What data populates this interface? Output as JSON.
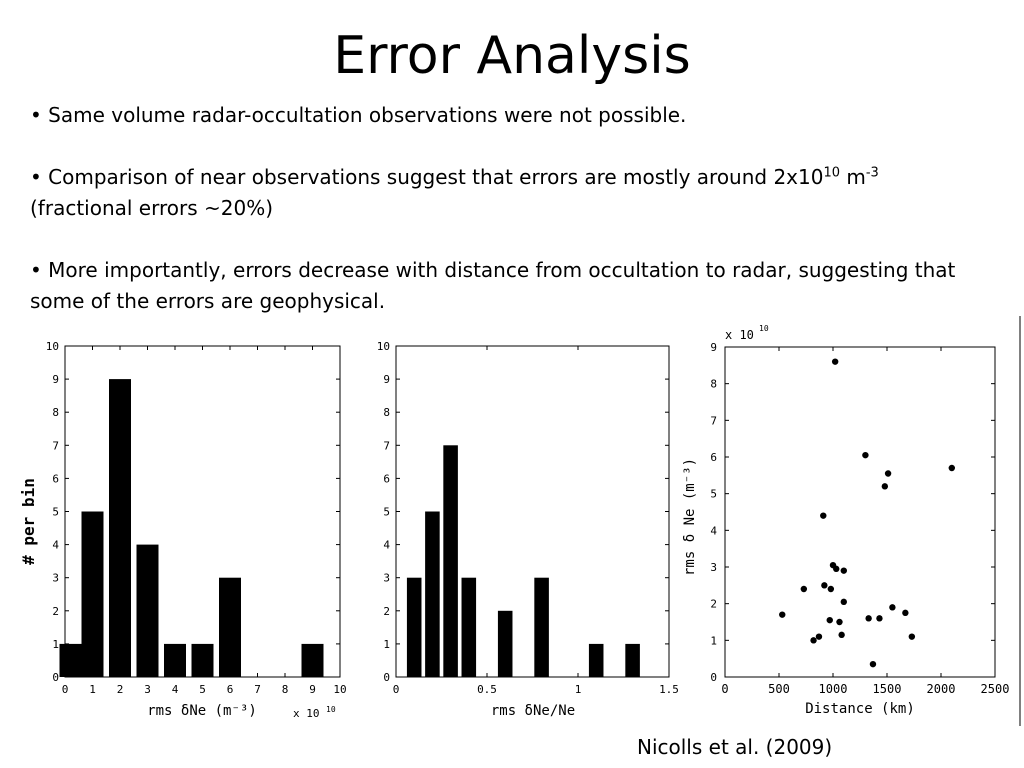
{
  "slide": {
    "title": "Error Analysis",
    "bullet1": "Same volume radar-occultation observations were not possible.",
    "bullet2_pre": "Comparison of near observations suggest that errors are mostly around 2x10",
    "bullet2_sup1": "10",
    "bullet2_mid": " m",
    "bullet2_sup2": "-3",
    "bullet2_post": "(fractional errors ~20%)",
    "bullet3": "More importantly, errors decrease with distance from occultation to radar, suggesting that some of the errors are geophysical.",
    "bullet_marker": "•",
    "citation": "Nicolls et al. (2009)"
  },
  "chart_data": [
    {
      "type": "bar",
      "xlabel": "rms δNe (m⁻³)",
      "x_multiplier": "x 10",
      "x_multiplier_exp": "10",
      "ylabel": "# per bin",
      "xlim": [
        0,
        10
      ],
      "ylim": [
        0,
        10
      ],
      "xticks": [
        "0",
        "1",
        "2",
        "3",
        "4",
        "5",
        "6",
        "7",
        "8",
        "9",
        "10"
      ],
      "yticks": [
        "0",
        "1",
        "2",
        "3",
        "4",
        "5",
        "6",
        "7",
        "8",
        "9",
        "10"
      ],
      "bin_width": 0.8,
      "bins": [
        0.2,
        1,
        2,
        3,
        4,
        5,
        6,
        7,
        8,
        9
      ],
      "values": [
        1,
        5,
        9,
        4,
        1,
        1,
        3,
        0,
        0,
        1
      ],
      "grid": false
    },
    {
      "type": "bar",
      "xlabel": "rms δNe/Ne",
      "xlim": [
        0,
        1.5
      ],
      "ylim": [
        0,
        10
      ],
      "xticks": [
        "0",
        "0.5",
        "1",
        "1.5"
      ],
      "yticks": [
        "0",
        "1",
        "2",
        "3",
        "4",
        "5",
        "6",
        "7",
        "8",
        "9",
        "10"
      ],
      "bin_width": 0.08,
      "bins": [
        0.1,
        0.2,
        0.3,
        0.4,
        0.6,
        0.8,
        1.1,
        1.3
      ],
      "values": [
        3,
        5,
        7,
        3,
        2,
        3,
        1,
        1
      ],
      "grid": false
    },
    {
      "type": "scatter",
      "xlabel": "Distance (km)",
      "ylabel": "rms δ Ne (m⁻³)",
      "y_multiplier": "x 10",
      "y_multiplier_exp": "10",
      "xlim": [
        0,
        2500
      ],
      "ylim": [
        0,
        9
      ],
      "xticks": [
        "0",
        "500",
        "1000",
        "1500",
        "2000",
        "2500"
      ],
      "yticks": [
        "0",
        "1",
        "2",
        "3",
        "4",
        "5",
        "6",
        "7",
        "8",
        "9"
      ],
      "points": [
        {
          "x": 530,
          "y": 1.7
        },
        {
          "x": 730,
          "y": 2.4
        },
        {
          "x": 820,
          "y": 1.0
        },
        {
          "x": 870,
          "y": 1.1
        },
        {
          "x": 910,
          "y": 4.4
        },
        {
          "x": 920,
          "y": 2.5
        },
        {
          "x": 970,
          "y": 1.55
        },
        {
          "x": 980,
          "y": 2.4
        },
        {
          "x": 1000,
          "y": 3.05
        },
        {
          "x": 1020,
          "y": 8.6
        },
        {
          "x": 1030,
          "y": 2.95
        },
        {
          "x": 1060,
          "y": 1.5
        },
        {
          "x": 1080,
          "y": 1.15
        },
        {
          "x": 1100,
          "y": 2.9
        },
        {
          "x": 1100,
          "y": 2.05
        },
        {
          "x": 1300,
          "y": 6.05
        },
        {
          "x": 1330,
          "y": 1.6
        },
        {
          "x": 1370,
          "y": 0.35
        },
        {
          "x": 1430,
          "y": 1.6
        },
        {
          "x": 1480,
          "y": 5.2
        },
        {
          "x": 1510,
          "y": 5.55
        },
        {
          "x": 1550,
          "y": 1.9
        },
        {
          "x": 1670,
          "y": 1.75
        },
        {
          "x": 1730,
          "y": 1.1
        },
        {
          "x": 2100,
          "y": 5.7
        }
      ],
      "grid": false
    }
  ]
}
